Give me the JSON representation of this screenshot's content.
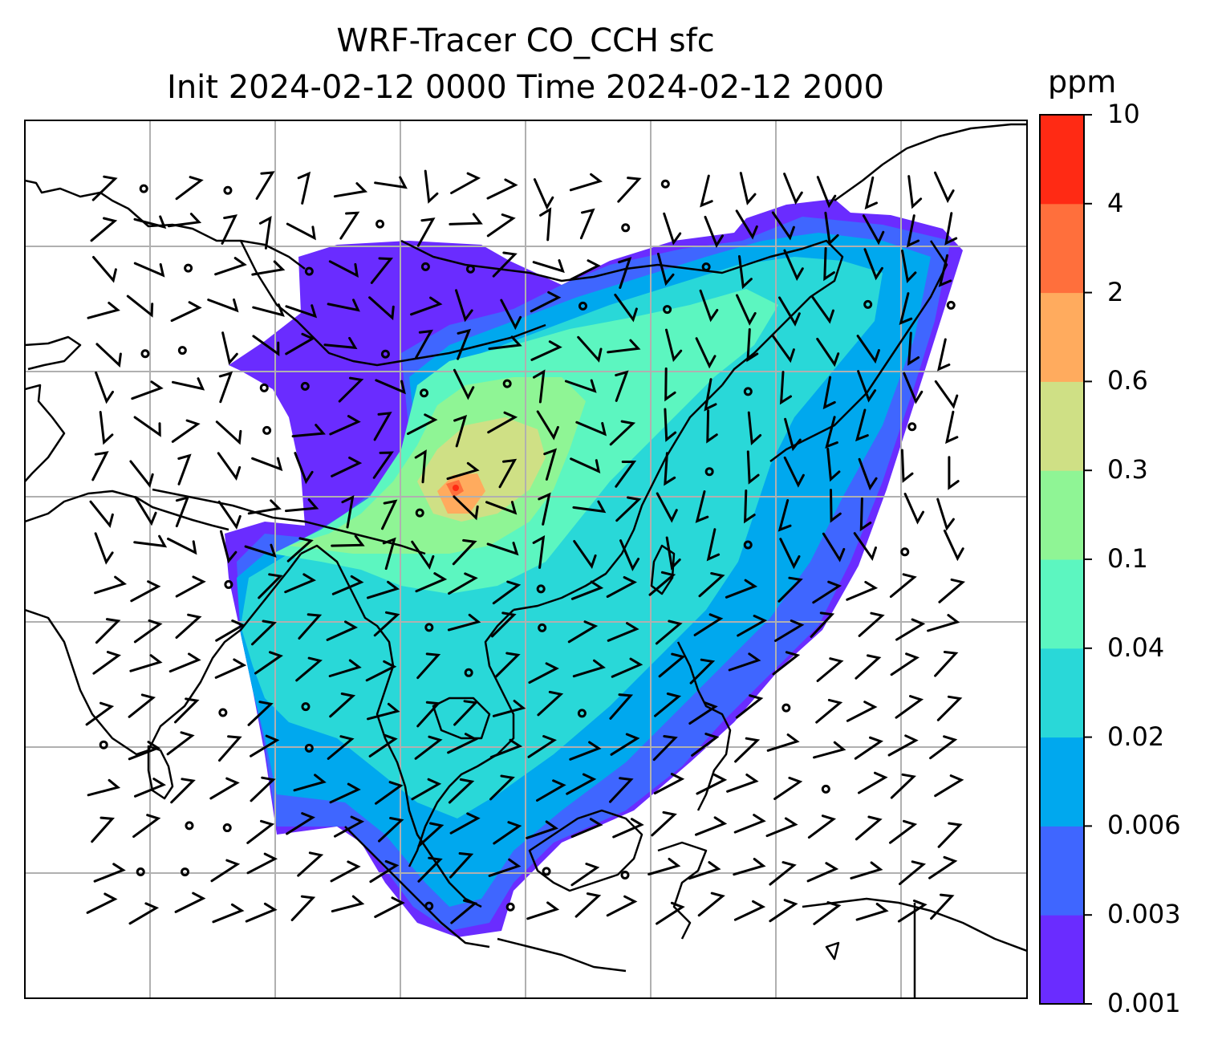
{
  "title": {
    "line1": "WRF-Tracer CO_CCH sfc",
    "line2": "Init 2024-02-12 0000 Time 2024-02-12 2000"
  },
  "colorbar": {
    "unit": "ppm",
    "tick_labels": [
      "0.001",
      "0.003",
      "0.006",
      "0.02",
      "0.04",
      "0.1",
      "0.3",
      "0.6",
      "2",
      "4",
      "10"
    ],
    "colors": [
      "#6a2cff",
      "#3f66ff",
      "#00a8ee",
      "#29d8d8",
      "#5cf6c0",
      "#8ff595",
      "#cfe085",
      "#ffab5e",
      "#ff6f3c",
      "#ff2a14"
    ]
  },
  "map": {
    "coastline_color": "#000000",
    "gridline_color": "#b0b0b0",
    "wind_barb_color": "#000000"
  }
}
